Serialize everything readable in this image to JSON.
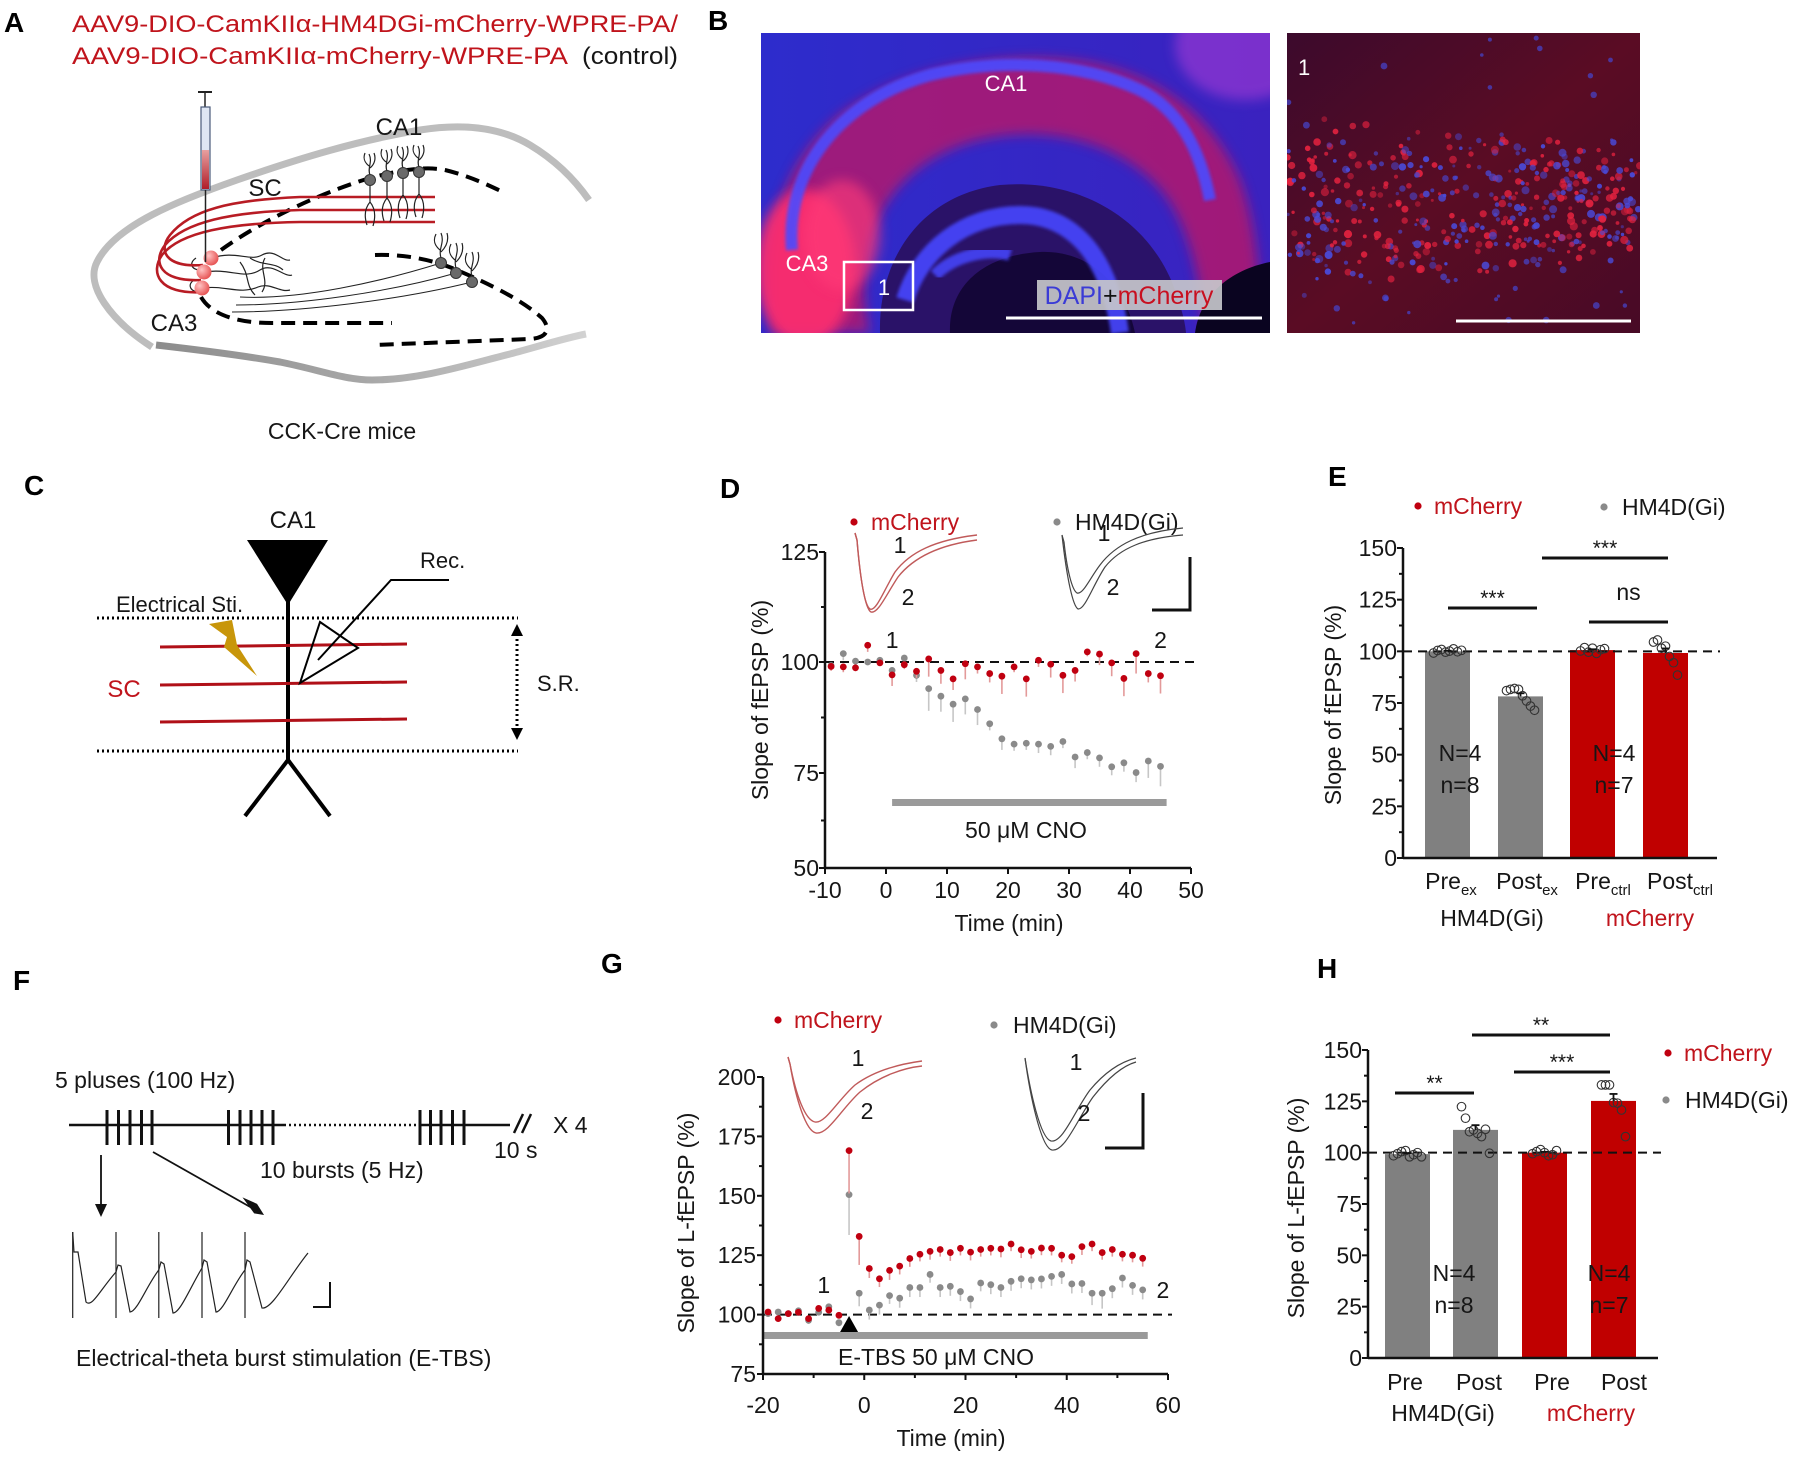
{
  "colors": {
    "mcherry": "#c00000",
    "hm4d_gi": "#808080",
    "text_red": "#c0141c",
    "stimulation_bolt": "#c8960a"
  },
  "panels": {
    "A": {
      "label": "A",
      "virus_line1": "AAV9-DIO-CamKIIα-HM4DGi-mCherry-WPRE-PA/",
      "virus_line2": "AAV9-DIO-CamKIIα-mCherry-WPRE-PA",
      "virus_line2_note": "(control)",
      "ca1": "CA1",
      "sc": "SC",
      "ca3": "CA3",
      "caption": "CCK-Cre mice"
    },
    "B": {
      "label": "B",
      "ca1": "CA1",
      "ca3": "CA3",
      "roi_label": "1",
      "stain_dapi": "DAPI",
      "stain_plus": "+",
      "stain_mcherry": "mCherry",
      "inset_label": "1"
    },
    "C": {
      "label": "C",
      "ca1": "CA1",
      "recording": "Rec.",
      "stimulation": "Electrical Sti.",
      "sc": "SC",
      "stratum": "S.R."
    },
    "D": {
      "label": "D"
    },
    "E": {
      "label": "E"
    },
    "F": {
      "label": "F",
      "pulses": "5 pluses (100 Hz)",
      "bursts": "10 bursts (5 Hz)",
      "interval": "10 s",
      "repeat": "X 4",
      "caption": "Electrical-theta burst stimulation (E-TBS)"
    },
    "G": {
      "label": "G"
    },
    "H": {
      "label": "H"
    }
  },
  "chart_data": [
    {
      "panel": "D",
      "type": "scatter",
      "title": "",
      "xlabel": "Time (min)",
      "ylabel": "Slope of fEPSP (%)",
      "xlim": [
        -10,
        50
      ],
      "ylim": [
        50,
        125
      ],
      "xticks": [
        -10,
        0,
        10,
        20,
        30,
        40,
        50
      ],
      "yticks": [
        50,
        75,
        100,
        125
      ],
      "grid": false,
      "legend_position": "top",
      "legend": [
        {
          "name": "mCherry",
          "color": "#c00000"
        },
        {
          "name": "HM4D(Gi)",
          "color": "#808080"
        }
      ],
      "reference_line": 100,
      "x": [
        -9,
        -7,
        -5,
        -3,
        -1,
        1,
        3,
        5,
        7,
        9,
        11,
        13,
        15,
        17,
        19,
        21,
        23,
        25,
        27,
        29,
        31,
        33,
        35,
        37,
        39,
        41,
        43,
        45
      ],
      "series": [
        {
          "name": "mCherry",
          "color": "#c00010",
          "error_color": "#e39a9a",
          "values": [
            99.0,
            98.9,
            98.7,
            103.8,
            99.8,
            97.1,
            99.4,
            97.9,
            100.7,
            98.1,
            96.2,
            99.6,
            98.9,
            97.4,
            96.8,
            98.9,
            96.2,
            100.4,
            99.5,
            97.0,
            98.1,
            102.3,
            101.8,
            99.8,
            96.3,
            101.9,
            97.4,
            96.9
          ],
          "sem": [
            1.0,
            1.2,
            0.8,
            1.5,
            0.6,
            2.5,
            1.0,
            1.5,
            4.0,
            3.0,
            2.5,
            3.5,
            1.5,
            2.0,
            4.0,
            1.2,
            4.0,
            1.5,
            3.0,
            4.0,
            2.5,
            1.0,
            2.5,
            3.0,
            4.0,
            4.5,
            2.0,
            4.0
          ]
        },
        {
          "name": "HM4D(Gi)",
          "color": "#8a8a8a",
          "error_color": "#c6c6c6",
          "values": [
            99.2,
            101.9,
            100.2,
            100.0,
            100.4,
            98.1,
            100.9,
            97.0,
            94.0,
            92.3,
            90.5,
            91.7,
            89.3,
            86.1,
            82.7,
            81.5,
            81.7,
            81.5,
            81.0,
            82.1,
            78.6,
            79.6,
            78.4,
            76.4,
            77.3,
            75.1,
            77.7,
            76.5
          ],
          "sem": [
            1.0,
            1.5,
            0.5,
            0.5,
            0.5,
            1.5,
            0.6,
            1.5,
            5.0,
            3.5,
            4.0,
            3.5,
            3.5,
            1.5,
            2.5,
            1.5,
            1.5,
            2.0,
            2.0,
            1.5,
            2.5,
            1.5,
            2.0,
            2.0,
            2.0,
            2.5,
            4.0,
            5.0
          ]
        }
      ],
      "drug_bar": {
        "label": "50 μM CNO",
        "from": 1,
        "to": 46
      },
      "timepoint_labels": [
        {
          "label": "1",
          "x": 1
        },
        {
          "label": "2",
          "x": 45
        }
      ],
      "inset_traces": [
        {
          "group": "mCherry",
          "labels": [
            "1",
            "2"
          ]
        },
        {
          "group": "HM4D(Gi)",
          "labels": [
            "1",
            "2"
          ]
        }
      ]
    },
    {
      "panel": "E",
      "type": "bar",
      "title": "",
      "xlabel": "",
      "ylabel": "Slope of fEPSP (%)",
      "ylim": [
        0,
        150
      ],
      "yticks": [
        0,
        25,
        50,
        75,
        100,
        125,
        150
      ],
      "grid": false,
      "legend_position": "top",
      "legend": [
        {
          "name": "mCherry",
          "color": "#c00000"
        },
        {
          "name": "HM4D(Gi)",
          "color": "#808080"
        }
      ],
      "reference_line": 100,
      "categories": [
        "Pre_ex",
        "Post_ex",
        "Pre_ctrl",
        "Post_ctrl"
      ],
      "category_labels": [
        {
          "main": "Pre",
          "sub": "ex"
        },
        {
          "main": "Post",
          "sub": "ex"
        },
        {
          "main": "Pre",
          "sub": "ctrl"
        },
        {
          "main": "Post",
          "sub": "ctrl"
        }
      ],
      "category_groups": [
        "HM4D(Gi)",
        "HM4D(Gi)",
        "mCherry",
        "mCherry"
      ],
      "values": [
        100.0,
        78.2,
        100.6,
        99.2
      ],
      "sem": [
        0.3,
        1.5,
        0.4,
        2.2
      ],
      "bar_colors": [
        "#808080",
        "#808080",
        "#c00000",
        "#c00000"
      ],
      "individual_points": [
        [
          99.2,
          100.4,
          100.9,
          99.6,
          100.1,
          101.2,
          99.8,
          100.5
        ],
        [
          81.0,
          81.6,
          82.0,
          81.6,
          78.5,
          76.0,
          73.5,
          71.5
        ],
        [
          100.2,
          101.8,
          99.6,
          101.5,
          99.0,
          100.8,
          101.3
        ],
        [
          104.5,
          105.5,
          101.5,
          102.5,
          97.5,
          94.5,
          88.5
        ]
      ],
      "groups": [
        {
          "label": "HM4D(Gi)",
          "color": "#161616",
          "N": "N=4",
          "n": "n=8"
        },
        {
          "label": "mCherry",
          "color": "#c0141c",
          "N": "N=4",
          "n": "n=7"
        }
      ],
      "significance": [
        {
          "from": "Pre_ex",
          "to": "Post_ex",
          "label": "***"
        },
        {
          "from": "Post_ex",
          "to": "Post_ctrl",
          "label": "***"
        },
        {
          "from": "Pre_ctrl",
          "to": "Post_ctrl",
          "label": "ns"
        }
      ]
    },
    {
      "panel": "G",
      "type": "scatter",
      "title": "",
      "xlabel": "Time (min)",
      "ylabel": "Slope of L-fEPSP (%)",
      "xlim": [
        -20,
        60
      ],
      "ylim": [
        75,
        200
      ],
      "xticks": [
        -20,
        0,
        20,
        40,
        60
      ],
      "yticks": [
        75,
        100,
        125,
        150,
        175,
        200
      ],
      "grid": false,
      "legend_position": "top",
      "legend": [
        {
          "name": "mCherry",
          "color": "#c00000"
        },
        {
          "name": "HM4D(Gi)",
          "color": "#808080"
        }
      ],
      "reference_line": 100,
      "x": [
        -19,
        -17,
        -15,
        -13,
        -11,
        -9,
        -7,
        -5,
        -3,
        -1,
        1,
        3,
        5,
        7,
        9,
        11,
        13,
        15,
        17,
        19,
        21,
        23,
        25,
        27,
        29,
        31,
        33,
        35,
        37,
        39,
        41,
        43,
        45,
        47,
        49,
        51,
        53,
        55
      ],
      "series": [
        {
          "name": "mCherry",
          "color": "#c00010",
          "error_color": "#e39a9a",
          "values": [
            101.1,
            98.3,
            100.4,
            101.0,
            98.3,
            102.6,
            101.9,
            99.7,
            169.0,
            132.9,
            119.4,
            115.1,
            118.6,
            120.4,
            123.6,
            125.4,
            126.6,
            127.4,
            126.1,
            127.9,
            126.3,
            127.4,
            127.9,
            127.6,
            129.7,
            127.3,
            126.6,
            128.0,
            127.9,
            125.0,
            124.4,
            128.6,
            129.7,
            126.1,
            127.4,
            125.4,
            125.0,
            123.7
          ],
          "sem": [
            1.0,
            1.0,
            0.8,
            1.0,
            1.0,
            1.2,
            1.5,
            1.0,
            18.0,
            12.0,
            4.0,
            3.5,
            4.0,
            3.5,
            3.5,
            3.0,
            3.5,
            3.0,
            3.5,
            3.0,
            3.5,
            3.0,
            3.0,
            3.5,
            3.0,
            3.5,
            3.0,
            3.0,
            3.0,
            3.0,
            3.0,
            3.5,
            3.0,
            3.0,
            3.0,
            3.0,
            3.0,
            3.5
          ]
        },
        {
          "name": "HM4D(Gi)",
          "color": "#8a8a8a",
          "error_color": "#c6c6c6",
          "values": [
            100.4,
            101.1,
            100.4,
            101.6,
            97.6,
            101.0,
            103.3,
            96.6,
            150.5,
            109.0,
            101.9,
            104.0,
            108.0,
            106.9,
            111.4,
            111.4,
            116.9,
            111.4,
            111.9,
            109.7,
            106.6,
            113.3,
            112.6,
            111.4,
            114.0,
            115.1,
            114.6,
            115.0,
            116.1,
            116.9,
            112.9,
            113.1,
            109.0,
            109.0,
            110.9,
            115.4,
            112.3,
            110.4
          ],
          "sem": [
            1.0,
            1.0,
            1.0,
            1.0,
            1.5,
            1.0,
            1.5,
            1.5,
            17.0,
            5.5,
            4.0,
            4.0,
            3.5,
            4.0,
            4.0,
            4.0,
            3.5,
            4.0,
            4.0,
            4.0,
            4.0,
            3.5,
            4.0,
            4.0,
            4.0,
            4.0,
            4.0,
            4.0,
            4.0,
            4.0,
            4.0,
            4.0,
            5.0,
            6.5,
            4.0,
            4.0,
            4.0,
            4.0
          ]
        }
      ],
      "drug_bar": {
        "label": "E-TBS 50 μM CNO",
        "from": -20,
        "to": 56
      },
      "stimulus_time": -3,
      "timepoint_labels": [
        {
          "label": "1",
          "x": -8
        },
        {
          "label": "2",
          "x": 59
        }
      ],
      "inset_traces": [
        {
          "group": "mCherry",
          "labels": [
            "1",
            "2"
          ]
        },
        {
          "group": "HM4D(Gi)",
          "labels": [
            "1",
            "2"
          ]
        }
      ]
    },
    {
      "panel": "H",
      "type": "bar",
      "title": "",
      "xlabel": "",
      "ylabel": "Slope of L-fEPSP (%)",
      "ylim": [
        0,
        150
      ],
      "yticks": [
        0,
        25,
        50,
        75,
        100,
        125,
        150
      ],
      "grid": false,
      "legend_position": "right",
      "legend": [
        {
          "name": "mCherry",
          "color": "#c00000"
        },
        {
          "name": "HM4D(Gi)",
          "color": "#808080"
        }
      ],
      "reference_line": 100,
      "categories": [
        "Pre",
        "Post",
        "Pre",
        "Post"
      ],
      "category_groups": [
        "HM4D(Gi)",
        "HM4D(Gi)",
        "mCherry",
        "mCherry"
      ],
      "values": [
        99.3,
        111.1,
        100.0,
        125.2
      ],
      "sem": [
        0.5,
        2.3,
        0.4,
        3.4
      ],
      "bar_colors": [
        "#808080",
        "#808080",
        "#c00000",
        "#c00000"
      ],
      "individual_points": [
        [
          98.5,
          99.5,
          100.5,
          101.0,
          98.0,
          99.0,
          100.0,
          98.0
        ],
        [
          122.4,
          116.8,
          110.2,
          111.1,
          109.4,
          107.8,
          111.4,
          99.7
        ],
        [
          99.5,
          100.5,
          101.5,
          100.0,
          98.5,
          99.0,
          101.0
        ],
        [
          133.0,
          133.0,
          133.0,
          124.4,
          124.1,
          120.8,
          107.8
        ]
      ],
      "groups": [
        {
          "label": "HM4D(Gi)",
          "color": "#161616",
          "N": "N=4",
          "n": "n=8"
        },
        {
          "label": "mCherry",
          "color": "#c0141c",
          "N": "N=4",
          "n": "n=7"
        }
      ],
      "significance": [
        {
          "from": 0,
          "to": 1,
          "label": "**"
        },
        {
          "from": 2,
          "to": 3,
          "label": "***"
        },
        {
          "from": 1,
          "to": 3,
          "label": "**"
        }
      ]
    }
  ]
}
